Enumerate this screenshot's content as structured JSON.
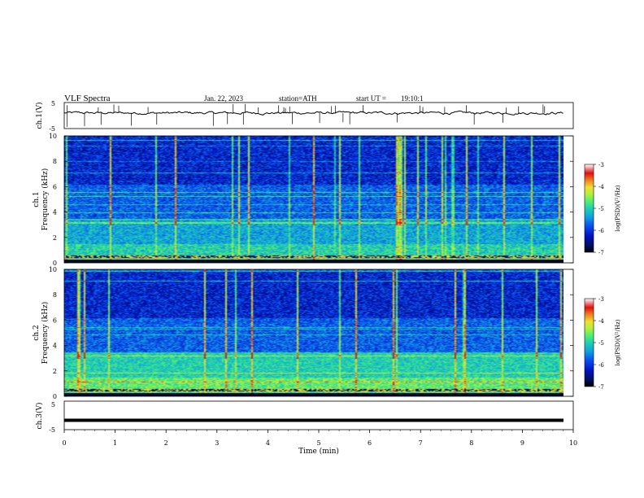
{
  "header": {
    "title": "VLF Spectra",
    "date": "Jan. 22, 2023",
    "station": "station=ATH",
    "start_label": "start UT =",
    "start_time": "19:10:1"
  },
  "colors": {
    "waveform": "#000000",
    "colormap": [
      "#000000",
      "#001060",
      "#0010c0",
      "#0a50f0",
      "#10a0e0",
      "#20d0b0",
      "#50f070",
      "#b0f040",
      "#f0e030",
      "#f08020",
      "#e01010",
      "#ffffff"
    ]
  },
  "chart_data": [
    {
      "type": "line",
      "name": "channel-1-waveform",
      "ylabel": "ch.1(V)",
      "ylim": [
        -5,
        5
      ],
      "yticks": [
        "5",
        "-5"
      ],
      "description_level": 1,
      "xlim": [
        0,
        10
      ]
    },
    {
      "type": "heatmap",
      "name": "channel-1-spectrogram",
      "ylabel_line1": "ch.1",
      "ylabel_line2": "Frequency (kHz)",
      "ylim": [
        0,
        10
      ],
      "yticks": [
        "0",
        "2",
        "4",
        "6",
        "8",
        "10"
      ],
      "xlim": [
        0,
        10
      ],
      "colorbar": {
        "label": "log(PSD)(V²/Hz)",
        "range": [
          -7,
          -3
        ],
        "ticks": [
          "-3",
          "-4",
          "-5",
          "-6",
          "-7"
        ]
      }
    },
    {
      "type": "heatmap",
      "name": "channel-2-spectrogram",
      "ylabel_line1": "ch.2",
      "ylabel_line2": "Frequency (kHz)",
      "ylim": [
        0,
        10
      ],
      "yticks": [
        "0",
        "2",
        "4",
        "6",
        "8",
        "10"
      ],
      "xlim": [
        0,
        10
      ],
      "colorbar": {
        "label": "log(PSD)(V²/Hz)",
        "range": [
          -7,
          -3
        ],
        "ticks": [
          "-3",
          "-4",
          "-5",
          "-6",
          "-7"
        ]
      }
    },
    {
      "type": "line",
      "name": "channel-3-waveform",
      "ylabel": "ch.3(V)",
      "ylim": [
        -5,
        5
      ],
      "yticks": [
        "5",
        "-5"
      ],
      "level": -1.7,
      "xlim": [
        0,
        10
      ],
      "xlabel": "Time (min)",
      "xticks": [
        "0",
        "1",
        "2",
        "3",
        "4",
        "5",
        "6",
        "7",
        "8",
        "9",
        "10"
      ]
    }
  ]
}
